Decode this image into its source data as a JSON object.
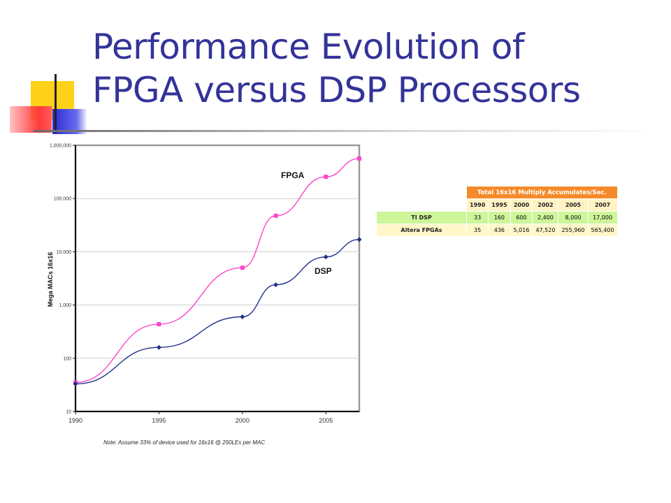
{
  "title": {
    "line1": "Performance Evolution of",
    "line2": "FPGA versus DSP Processors"
  },
  "colors": {
    "title": "#333399",
    "fpga": "#ff44cc",
    "dsp": "#1f2f88",
    "table_header": "#f58a2a",
    "table_green": "#cdf59a",
    "table_yellow": "#fff7c8"
  },
  "chart_data": {
    "type": "line",
    "yscale": "log",
    "ylim": [
      10,
      1000000
    ],
    "xlim": [
      1990,
      2007
    ],
    "ylabel": "Mega MACs 16x16",
    "note": "Note: Assume 33% of device used for 16x16 @ 250LEs per MAC",
    "x_ticks": [
      "1990",
      "1995",
      "2000",
      "2005"
    ],
    "y_ticks": [
      "1,000,000",
      "100,000",
      "10,000",
      "1,000",
      "100",
      "10"
    ],
    "grid": true,
    "series": [
      {
        "name": "FPGA",
        "x": [
          1990,
          1995,
          2000,
          2002,
          2005,
          2007
        ],
        "values": [
          35,
          436,
          5016,
          47520,
          255960,
          565400
        ]
      },
      {
        "name": "DSP",
        "x": [
          1990,
          1995,
          2000,
          2002,
          2005,
          2007
        ],
        "values": [
          33,
          160,
          600,
          2400,
          8000,
          17000
        ]
      }
    ]
  },
  "table": {
    "header": "Total 16x16 Multiply Accumulates/Sec.",
    "years": [
      "1990",
      "1995",
      "2000",
      "2002",
      "2005",
      "2007"
    ],
    "rows": [
      {
        "label": "TI DSP",
        "values": [
          "33",
          "160",
          "600",
          "2,400",
          "8,000",
          "17,000"
        ]
      },
      {
        "label": "Altera FPGAs",
        "values": [
          "35",
          "436",
          "5,016",
          "47,520",
          "255,960",
          "565,400"
        ]
      }
    ]
  }
}
